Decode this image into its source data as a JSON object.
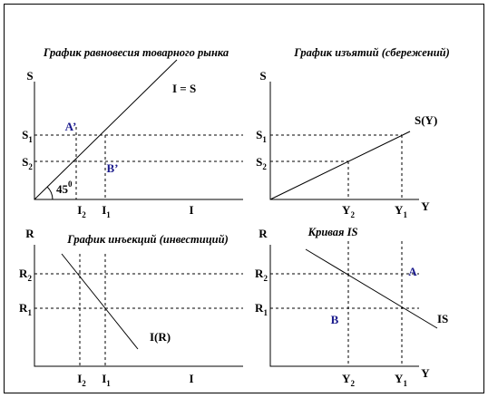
{
  "panels": [
    {
      "title": "График равновесия товарного рынка",
      "y_axis": "S",
      "x_axis": "I",
      "curve": "I = S",
      "angle": {
        "base": "45",
        "sup": "0"
      },
      "y_ticks": [
        {
          "base": "S",
          "sub": "1"
        },
        {
          "base": "S",
          "sub": "2"
        }
      ],
      "x_ticks": [
        {
          "base": "I",
          "sub": "2"
        },
        {
          "base": "I",
          "sub": "1"
        }
      ],
      "points": [
        "A’",
        "B’"
      ]
    },
    {
      "title": "График изъятий (сбережений)",
      "y_axis": "S",
      "x_axis": "Y",
      "curve": "S(Y)",
      "y_ticks": [
        {
          "base": "S",
          "sub": "1"
        },
        {
          "base": "S",
          "sub": "2"
        }
      ],
      "x_ticks": [
        {
          "base": "Y",
          "sub": "2"
        },
        {
          "base": "Y",
          "sub": "1"
        }
      ]
    },
    {
      "title": "График инъекций (инвестиций)",
      "y_axis": "R",
      "x_axis": "I",
      "curve": "I(R)",
      "y_ticks": [
        {
          "base": "R",
          "sub": "2"
        },
        {
          "base": "R",
          "sub": "1"
        }
      ],
      "x_ticks": [
        {
          "base": "I",
          "sub": "2"
        },
        {
          "base": "I",
          "sub": "1"
        }
      ]
    },
    {
      "title": "Кривая IS",
      "y_axis": "R",
      "x_axis": "Y",
      "curve": "IS",
      "y_ticks": [
        {
          "base": "R",
          "sub": "2"
        },
        {
          "base": "R",
          "sub": "1"
        }
      ],
      "x_ticks": [
        {
          "base": "Y",
          "sub": "2"
        },
        {
          "base": "Y",
          "sub": "1"
        }
      ],
      "points": [
        "A",
        "B"
      ]
    }
  ]
}
